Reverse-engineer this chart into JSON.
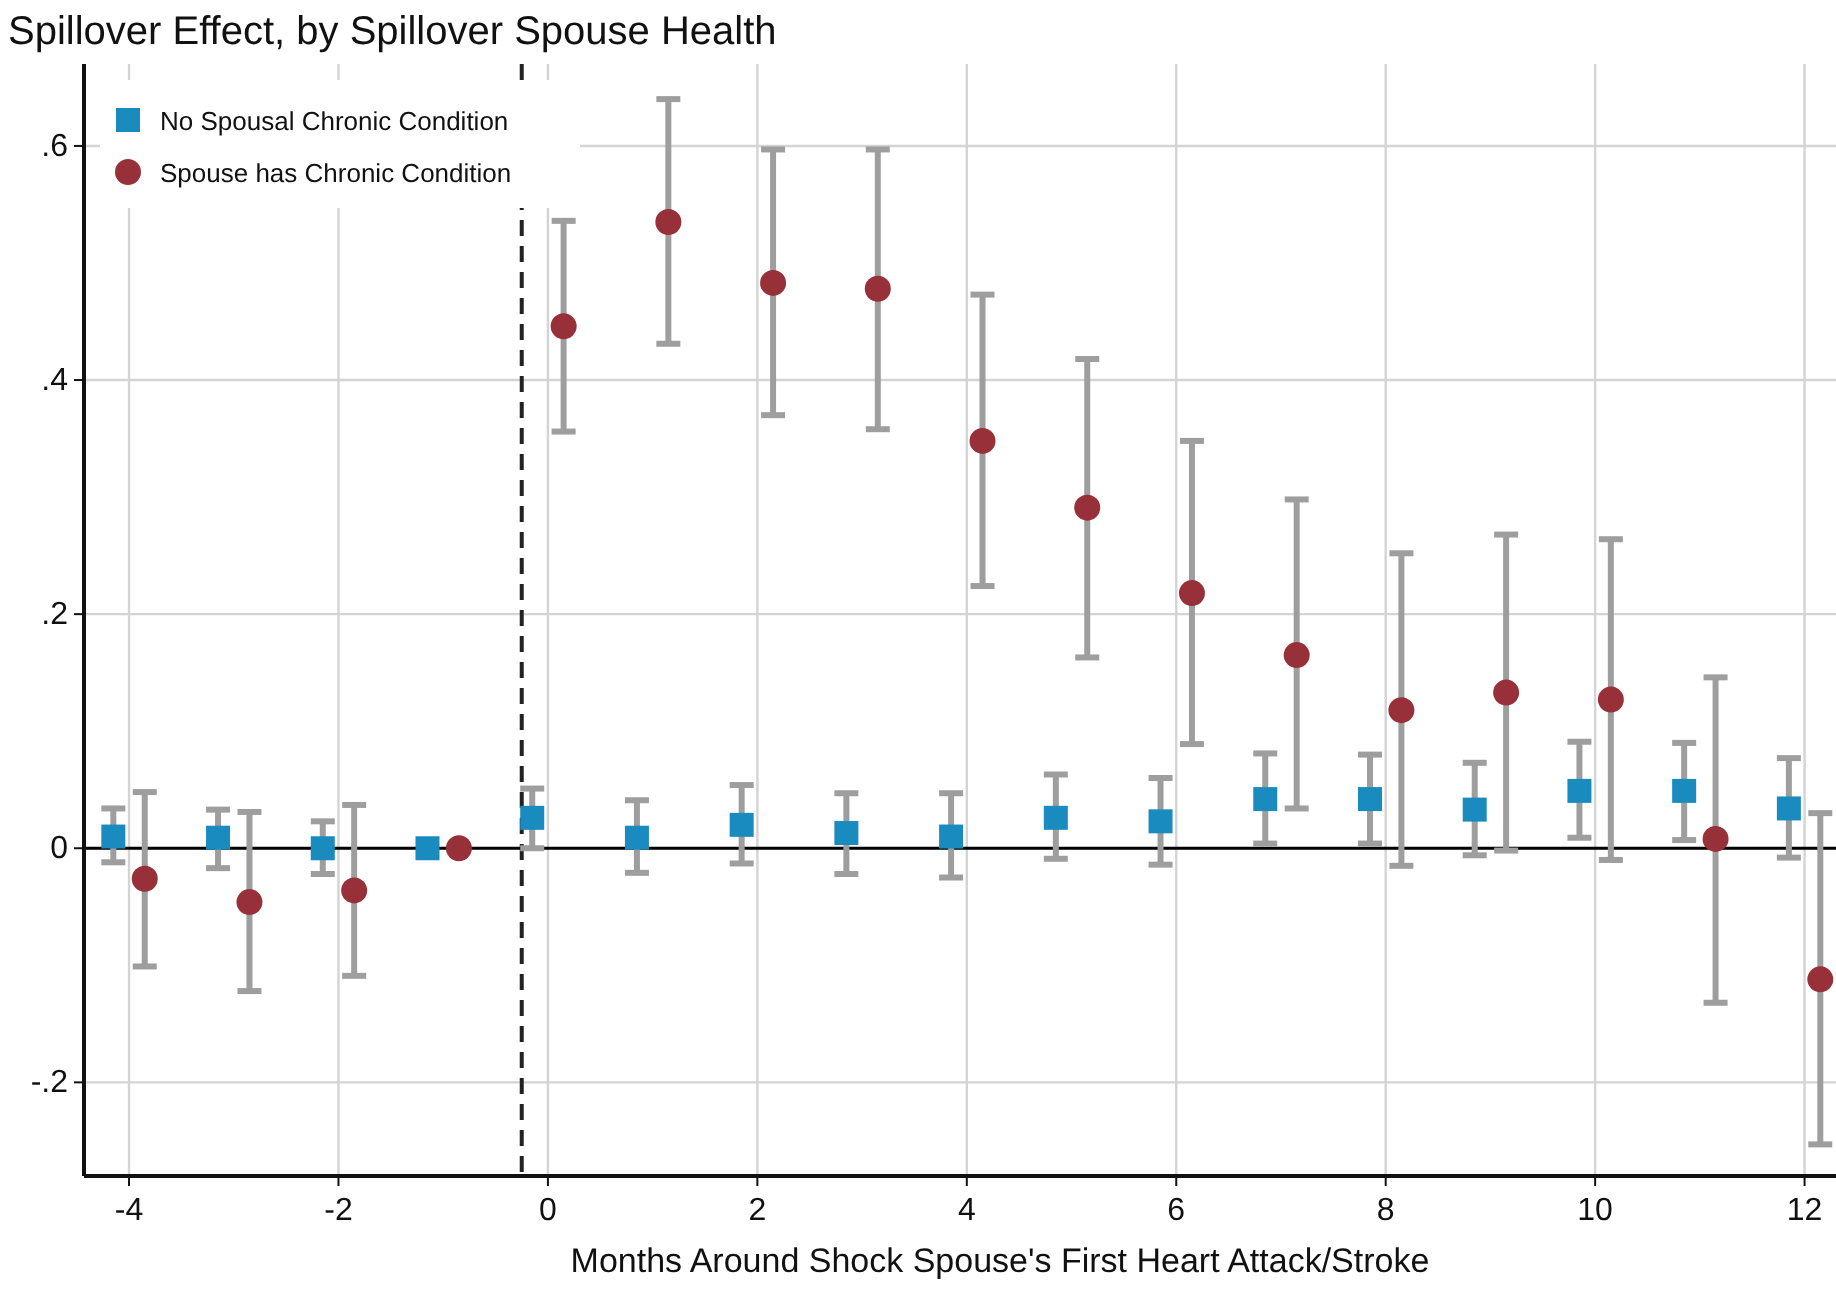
{
  "chart_data": {
    "type": "scatter",
    "title": "Spillover Effect, by Spillover Spouse Health",
    "xlabel": "Months Around Shock Spouse's First Heart Attack/Stroke",
    "xlim": [
      -4.43,
      12.3
    ],
    "xticks": [
      -4,
      -2,
      0,
      2,
      4,
      6,
      8,
      10,
      12
    ],
    "ylim": [
      -0.28,
      0.67
    ],
    "yticks": [
      {
        "value": -0.2,
        "label": "-.2"
      },
      0,
      {
        "value": 0.2,
        "label": ".2"
      },
      {
        "value": 0.4,
        "label": ".4"
      },
      {
        "value": 0.6,
        "label": ".6"
      }
    ],
    "grid": true,
    "legend": "top left",
    "ref_lines": [
      {
        "axis": "x",
        "value": -0.25,
        "color": "#222222",
        "line_style": "dashed"
      },
      {
        "axis": "y",
        "value": 0,
        "color": "#000000",
        "line_style": "solid"
      }
    ],
    "series": [
      {
        "name": "No Spousal Chronic Condition",
        "color": "#1a8bbf",
        "marker": "square",
        "x": [
          -4.15,
          -3.15,
          -2.15,
          -1.15,
          -0.15,
          0.85,
          1.85,
          2.85,
          3.85,
          4.85,
          5.85,
          6.85,
          7.85,
          8.85,
          9.85,
          10.85,
          11.85
        ],
        "values": [
          0.01,
          0.009,
          0,
          0,
          0.026,
          0.009,
          0.02,
          0.013,
          0.01,
          0.026,
          0.023,
          0.042,
          0.042,
          0.033,
          0.049,
          0.049,
          0.034
        ],
        "errors": [
          [
            -0.012,
            0.034
          ],
          [
            -0.017,
            0.033
          ],
          [
            -0.022,
            0.023
          ],
          null,
          [
            0,
            0.051
          ],
          [
            -0.021,
            0.041
          ],
          [
            -0.013,
            0.054
          ],
          [
            -0.022,
            0.047
          ],
          [
            -0.025,
            0.047
          ],
          [
            -0.009,
            0.063
          ],
          [
            -0.014,
            0.06
          ],
          [
            0.004,
            0.081
          ],
          [
            0.004,
            0.08
          ],
          [
            -0.006,
            0.073
          ],
          [
            0.009,
            0.091
          ],
          [
            0.007,
            0.09
          ],
          [
            -0.008,
            0.077
          ]
        ]
      },
      {
        "name": "Spouse has Chronic Condition",
        "color": "#973038",
        "marker": "circle",
        "x": [
          -3.85,
          -2.85,
          -1.85,
          -0.85,
          0.15,
          1.15,
          2.15,
          3.15,
          4.15,
          5.15,
          6.15,
          7.15,
          8.15,
          9.15,
          10.15,
          11.15,
          12.15
        ],
        "values": [
          -0.026,
          -0.046,
          -0.036,
          0,
          0.446,
          0.535,
          0.483,
          0.478,
          0.348,
          0.291,
          0.218,
          0.165,
          0.118,
          0.133,
          0.127,
          0.008,
          -0.112
        ],
        "errors": [
          [
            -0.101,
            0.048
          ],
          [
            -0.122,
            0.031
          ],
          [
            -0.109,
            0.037
          ],
          null,
          [
            0.356,
            0.536
          ],
          [
            0.431,
            0.64
          ],
          [
            0.37,
            0.597
          ],
          [
            0.358,
            0.597
          ],
          [
            0.224,
            0.473
          ],
          [
            0.163,
            0.418
          ],
          [
            0.089,
            0.348
          ],
          [
            0.034,
            0.298
          ],
          [
            -0.015,
            0.252
          ],
          [
            -0.002,
            0.268
          ],
          [
            -0.01,
            0.264
          ],
          [
            -0.132,
            0.146
          ],
          [
            -0.253,
            0.03
          ]
        ]
      }
    ]
  }
}
